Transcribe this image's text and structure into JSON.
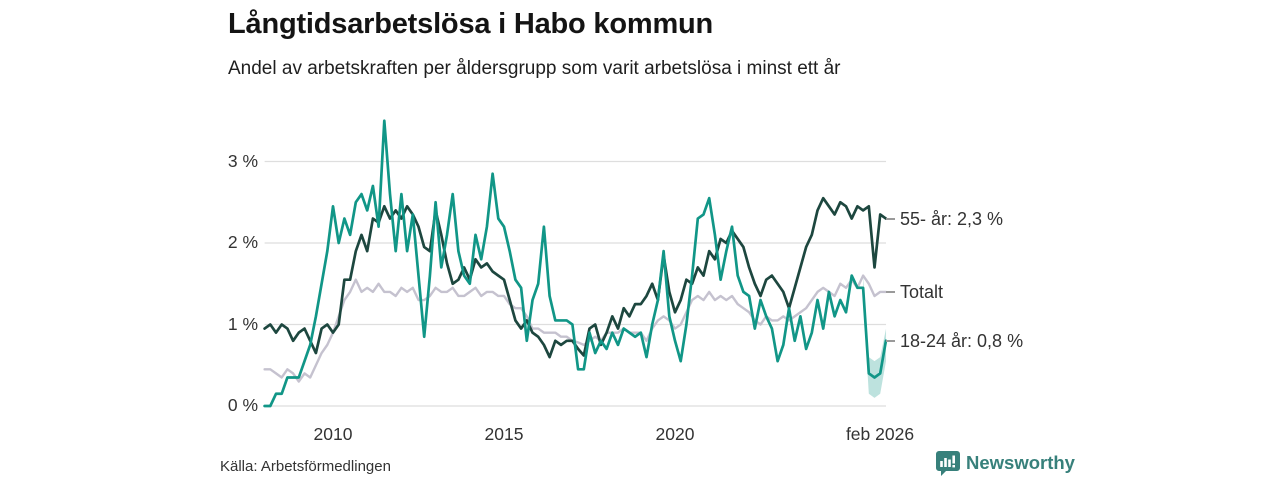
{
  "source": {
    "text": "Källa: Arbetsförmedlingen"
  },
  "brand": {
    "name": "Newsworthy",
    "color": "#37807b",
    "icon": "newsworthy-bar-chart-bubble-icon"
  },
  "chart_data": {
    "type": "line",
    "title": "Långtidsarbetslösa i Habo kommun",
    "subtitle": "Andel av arbetskraften per åldersgrupp som varit arbetslösa i minst ett år",
    "grid": "horizontal",
    "legend_position": "right-end-labels",
    "legend_dash_color": "#9a9a9a",
    "grid_color": "#dedede",
    "x_range": [
      2008,
      2026.17
    ],
    "ylim": [
      0,
      3.6
    ],
    "x_start": 2008,
    "x_step": 0.16667,
    "x_axis": {
      "tick_labels": [
        "2010",
        "2015",
        "2020",
        "feb 2026"
      ],
      "tick_positions": [
        2010,
        2015,
        2020,
        2026.08
      ]
    },
    "y_axis": {
      "unit": "%",
      "tick_labels": [
        "3 %",
        "2 %",
        "1 %",
        "0 %"
      ],
      "tick_values": [
        3,
        2,
        1,
        0
      ]
    },
    "series": [
      {
        "name": "55- år",
        "end_label": "55- år: 2,3 %",
        "latest_value": "2,3 %",
        "color": "#1d473f",
        "values": [
          0.95,
          1.0,
          0.9,
          1.0,
          0.95,
          0.8,
          0.9,
          0.95,
          0.8,
          0.65,
          0.95,
          1.0,
          0.9,
          1.0,
          1.55,
          1.55,
          1.9,
          2.1,
          1.9,
          2.3,
          2.25,
          2.45,
          2.3,
          2.4,
          2.3,
          2.45,
          2.35,
          2.2,
          1.95,
          1.9,
          2.4,
          2.1,
          1.75,
          1.5,
          1.55,
          1.7,
          1.55,
          1.8,
          1.7,
          1.75,
          1.65,
          1.6,
          1.55,
          1.3,
          1.05,
          0.95,
          1.05,
          0.9,
          0.85,
          0.75,
          0.6,
          0.8,
          0.75,
          0.8,
          0.8,
          0.7,
          0.62,
          0.95,
          1.0,
          0.75,
          0.9,
          1.1,
          0.95,
          1.2,
          1.1,
          1.25,
          1.25,
          1.35,
          1.5,
          1.3,
          1.85,
          1.4,
          1.15,
          1.3,
          1.55,
          1.5,
          1.7,
          1.6,
          1.9,
          1.8,
          2.05,
          2.0,
          2.15,
          2.05,
          1.95,
          1.7,
          1.5,
          1.35,
          1.55,
          1.6,
          1.5,
          1.4,
          1.2,
          1.45,
          1.7,
          1.95,
          2.1,
          2.4,
          2.55,
          2.45,
          2.35,
          2.5,
          2.45,
          2.3,
          2.45,
          2.4,
          2.45,
          1.7,
          2.35,
          2.3
        ]
      },
      {
        "name": "Totalt",
        "end_label": "Totalt",
        "color": "#c5c2cf",
        "values": [
          0.45,
          0.45,
          0.4,
          0.35,
          0.45,
          0.4,
          0.3,
          0.4,
          0.35,
          0.5,
          0.65,
          0.75,
          0.9,
          1.1,
          1.3,
          1.4,
          1.55,
          1.4,
          1.45,
          1.4,
          1.5,
          1.4,
          1.4,
          1.35,
          1.45,
          1.4,
          1.45,
          1.3,
          1.3,
          1.35,
          1.45,
          1.4,
          1.4,
          1.45,
          1.35,
          1.35,
          1.4,
          1.45,
          1.35,
          1.4,
          1.4,
          1.35,
          1.35,
          1.25,
          1.2,
          1.2,
          1.1,
          0.95,
          0.95,
          0.9,
          0.9,
          0.9,
          0.85,
          0.85,
          0.8,
          0.78,
          0.75,
          0.8,
          0.85,
          0.8,
          0.9,
          0.9,
          0.9,
          0.95,
          0.9,
          0.9,
          0.9,
          0.8,
          0.95,
          1.05,
          1.1,
          1.05,
          0.95,
          1.0,
          1.15,
          1.3,
          1.35,
          1.3,
          1.4,
          1.3,
          1.35,
          1.3,
          1.35,
          1.25,
          1.2,
          1.15,
          1.05,
          1.0,
          1.1,
          1.05,
          1.05,
          1.1,
          1.05,
          1.1,
          1.15,
          1.2,
          1.3,
          1.4,
          1.45,
          1.4,
          1.35,
          1.5,
          1.45,
          1.55,
          1.45,
          1.6,
          1.5,
          1.35,
          1.4,
          1.4
        ]
      },
      {
        "name": "18-24 år",
        "end_label": "18-24 år: 0,8 %",
        "latest_value": "0,8 %",
        "color": "#119687",
        "values": [
          0.0,
          0.0,
          0.15,
          0.15,
          0.35,
          0.35,
          0.35,
          0.55,
          0.75,
          1.1,
          1.5,
          1.9,
          2.45,
          2.0,
          2.3,
          2.1,
          2.5,
          2.6,
          2.4,
          2.7,
          2.2,
          3.5,
          2.6,
          1.9,
          2.6,
          1.9,
          2.35,
          1.6,
          0.85,
          1.6,
          2.5,
          1.7,
          2.1,
          2.6,
          1.9,
          1.6,
          1.5,
          2.1,
          1.8,
          2.2,
          2.85,
          2.3,
          2.2,
          1.9,
          1.55,
          1.45,
          0.8,
          1.3,
          1.5,
          2.2,
          1.35,
          1.05,
          1.05,
          1.05,
          1.0,
          0.45,
          0.45,
          0.9,
          0.65,
          0.8,
          0.7,
          0.9,
          0.75,
          0.95,
          0.9,
          0.85,
          0.9,
          0.6,
          1.0,
          1.3,
          1.9,
          1.1,
          0.8,
          0.55,
          1.0,
          1.6,
          2.3,
          2.35,
          2.55,
          2.1,
          1.55,
          1.9,
          2.2,
          1.6,
          1.4,
          1.35,
          0.95,
          1.3,
          1.1,
          0.95,
          0.55,
          0.75,
          1.2,
          0.8,
          1.1,
          0.7,
          0.9,
          1.3,
          0.95,
          1.4,
          1.1,
          1.3,
          1.15,
          1.6,
          1.45,
          1.45,
          0.4,
          0.35,
          0.4,
          0.8
        ],
        "confidence_band": {
          "x": [
            2025.5,
            2025.667,
            2025.833,
            2026.0,
            2026.17
          ],
          "lo": [
            1.3,
            0.15,
            0.1,
            0.15,
            0.55
          ],
          "hi": [
            1.6,
            0.6,
            0.55,
            0.6,
            0.95
          ],
          "fill": "rgba(17,150,135,0.28)"
        }
      }
    ]
  }
}
